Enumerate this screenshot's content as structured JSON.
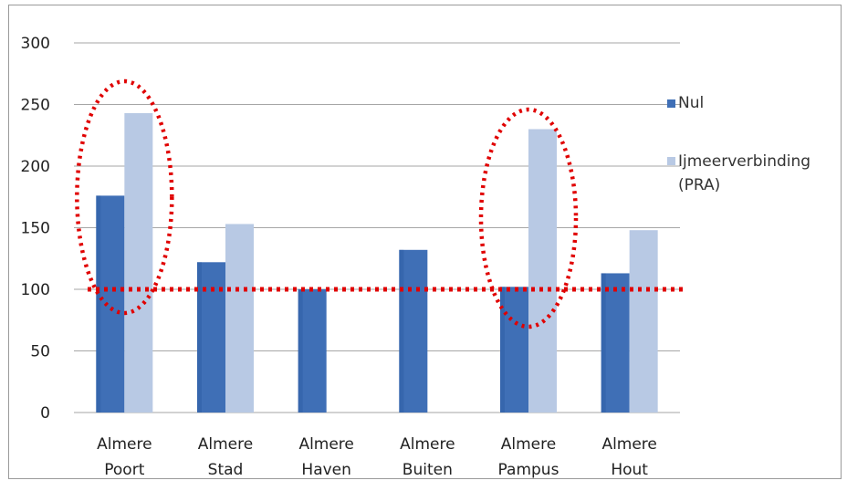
{
  "chart_data": {
    "type": "bar",
    "categories": [
      [
        "Almere",
        "Poort"
      ],
      [
        "Almere",
        "Stad"
      ],
      [
        "Almere",
        "Haven"
      ],
      [
        "Almere",
        "Buiten"
      ],
      [
        "Almere",
        "Pampus"
      ],
      [
        "Almere",
        "Hout"
      ]
    ],
    "series": [
      {
        "name": "Nul",
        "values": [
          176,
          122,
          100,
          132,
          102,
          113
        ]
      },
      {
        "name": "Ijmeerverbinding (PRA)",
        "legend_lines": [
          "Ijmeerverbinding",
          "(PRA)"
        ],
        "values": [
          243,
          153,
          null,
          null,
          230,
          148
        ]
      }
    ],
    "ylim": [
      0,
      300
    ],
    "yticks": [
      0,
      50,
      100,
      150,
      200,
      250,
      300
    ],
    "grid": true,
    "legend": "right",
    "reference_line": 100,
    "highlighted_categories": [
      0,
      4
    ],
    "colors": {
      "nul": "#3f6fb6",
      "pra": "#b8c9e4",
      "annotation": "#e00000",
      "grid": "#a6a6a6"
    }
  }
}
